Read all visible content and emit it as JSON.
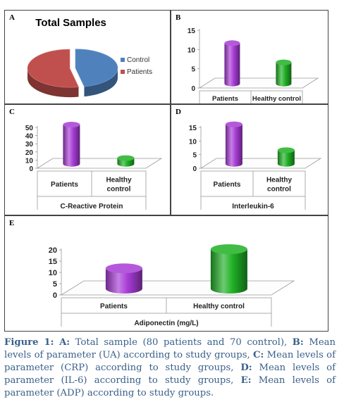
{
  "panels": {
    "A": {
      "label": "A"
    },
    "B": {
      "label": "B"
    },
    "C": {
      "label": "C"
    },
    "D": {
      "label": "D"
    },
    "E": {
      "label": "E"
    }
  },
  "chart_data": [
    {
      "id": "A",
      "type": "pie",
      "title": "Total Samples",
      "slices": [
        {
          "name": "Control",
          "value": 70,
          "color": "#4f81bd"
        },
        {
          "name": "Patients",
          "value": 80,
          "color": "#c0504d"
        }
      ],
      "legend": "right"
    },
    {
      "id": "B",
      "type": "bar",
      "title": "",
      "xlabel": "",
      "categories": [
        "Patients",
        "Healthy control"
      ],
      "values": [
        10.5,
        5.5
      ],
      "colors": [
        "#a83cd6",
        "#1fb024"
      ],
      "ylim": [
        0,
        15
      ],
      "yticks": [
        0,
        5,
        10,
        15
      ]
    },
    {
      "id": "C",
      "type": "bar",
      "title": "",
      "xlabel": "C-Reactive Protein",
      "categories": [
        "Patients",
        "Healthy control"
      ],
      "values": [
        48,
        7
      ],
      "colors": [
        "#a83cd6",
        "#1fb024"
      ],
      "ylim": [
        0,
        50
      ],
      "yticks": [
        0,
        10,
        20,
        30,
        40,
        50
      ]
    },
    {
      "id": "D",
      "type": "bar",
      "title": "",
      "xlabel": "Interleukin-6",
      "categories": [
        "Patients",
        "Healthy control"
      ],
      "values": [
        14.5,
        5
      ],
      "colors": [
        "#a83cd6",
        "#1fb024"
      ],
      "ylim": [
        0,
        15
      ],
      "yticks": [
        0,
        5,
        10,
        15
      ]
    },
    {
      "id": "E",
      "type": "bar",
      "title": "",
      "xlabel": "Adiponectin (mg/L)",
      "categories": [
        "Patients",
        "Healthy control"
      ],
      "values": [
        9,
        17.5
      ],
      "colors": [
        "#a83cd6",
        "#1fb024"
      ],
      "ylim": [
        0,
        20
      ],
      "yticks": [
        0,
        5,
        10,
        15,
        20
      ]
    }
  ],
  "caption": {
    "figure_label": "Figure 1:",
    "parts": [
      {
        "bold": "A:",
        "text": " Total sample (80 patients and 70 control), "
      },
      {
        "bold": "B:",
        "text": " Mean levels of parameter (UA) according to study groups, "
      },
      {
        "bold": "C:",
        "text": "  Mean levels of parameter (CRP) according to study groups, "
      },
      {
        "bold": "D:",
        "text": " Mean levels of parameter (IL-6) according to study groups, "
      },
      {
        "bold": "E:",
        "text": " Mean levels of parameter (ADP) according to study groups."
      }
    ]
  }
}
